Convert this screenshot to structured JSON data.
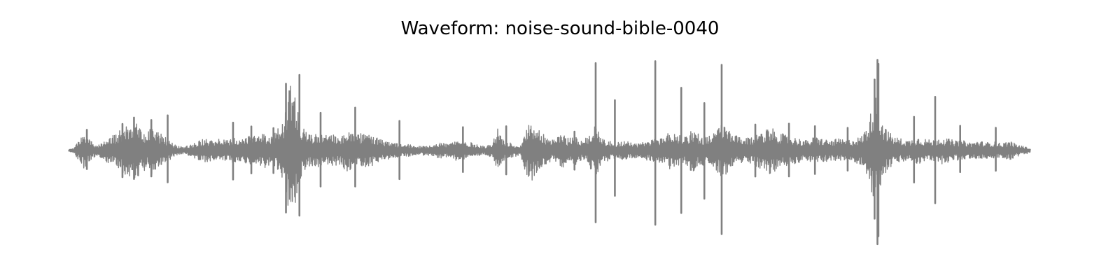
{
  "chart_data": {
    "type": "line",
    "title": "Waveform: noise-sound-bible-0040",
    "xlabel": "",
    "ylabel": "",
    "axes_visible": false,
    "grid": false,
    "ylim": [
      -1,
      1
    ],
    "x_range": [
      0,
      1
    ],
    "color": "#808080",
    "series": [
      {
        "envelope": [
          [
            0.0,
            0.01
          ],
          [
            0.005,
            0.02
          ],
          [
            0.01,
            0.1
          ],
          [
            0.016,
            0.18
          ],
          [
            0.02,
            0.12
          ],
          [
            0.025,
            0.08
          ],
          [
            0.032,
            0.06
          ],
          [
            0.04,
            0.12
          ],
          [
            0.048,
            0.16
          ],
          [
            0.055,
            0.22
          ],
          [
            0.06,
            0.28
          ],
          [
            0.066,
            0.24
          ],
          [
            0.072,
            0.32
          ],
          [
            0.076,
            0.22
          ],
          [
            0.082,
            0.18
          ],
          [
            0.088,
            0.26
          ],
          [
            0.092,
            0.2
          ],
          [
            0.098,
            0.15
          ],
          [
            0.105,
            0.1
          ],
          [
            0.112,
            0.05
          ],
          [
            0.12,
            0.04
          ],
          [
            0.128,
            0.06
          ],
          [
            0.135,
            0.1
          ],
          [
            0.142,
            0.12
          ],
          [
            0.15,
            0.1
          ],
          [
            0.158,
            0.12
          ],
          [
            0.165,
            0.1
          ],
          [
            0.172,
            0.14
          ],
          [
            0.18,
            0.12
          ],
          [
            0.188,
            0.15
          ],
          [
            0.196,
            0.14
          ],
          [
            0.204,
            0.18
          ],
          [
            0.21,
            0.15
          ],
          [
            0.216,
            0.2
          ],
          [
            0.224,
            0.3
          ],
          [
            0.228,
            0.55
          ],
          [
            0.232,
            0.72
          ],
          [
            0.236,
            0.52
          ],
          [
            0.24,
            0.3
          ],
          [
            0.246,
            0.2
          ],
          [
            0.252,
            0.16
          ],
          [
            0.258,
            0.18
          ],
          [
            0.266,
            0.15
          ],
          [
            0.274,
            0.16
          ],
          [
            0.282,
            0.14
          ],
          [
            0.29,
            0.22
          ],
          [
            0.298,
            0.15
          ],
          [
            0.306,
            0.18
          ],
          [
            0.314,
            0.16
          ],
          [
            0.322,
            0.12
          ],
          [
            0.33,
            0.09
          ],
          [
            0.338,
            0.08
          ],
          [
            0.346,
            0.06
          ],
          [
            0.354,
            0.06
          ],
          [
            0.362,
            0.04
          ],
          [
            0.37,
            0.05
          ],
          [
            0.378,
            0.06
          ],
          [
            0.386,
            0.08
          ],
          [
            0.394,
            0.07
          ],
          [
            0.402,
            0.1
          ],
          [
            0.41,
            0.09
          ],
          [
            0.418,
            0.08
          ],
          [
            0.426,
            0.06
          ],
          [
            0.434,
            0.04
          ],
          [
            0.44,
            0.08
          ],
          [
            0.446,
            0.22
          ],
          [
            0.452,
            0.1
          ],
          [
            0.458,
            0.08
          ],
          [
            0.464,
            0.06
          ],
          [
            0.47,
            0.05
          ],
          [
            0.476,
            0.25
          ],
          [
            0.482,
            0.3
          ],
          [
            0.488,
            0.22
          ],
          [
            0.494,
            0.18
          ],
          [
            0.5,
            0.12
          ],
          [
            0.506,
            0.1
          ],
          [
            0.512,
            0.2
          ],
          [
            0.518,
            0.12
          ],
          [
            0.526,
            0.16
          ],
          [
            0.534,
            0.1
          ],
          [
            0.54,
            0.14
          ],
          [
            0.548,
            0.28
          ],
          [
            0.556,
            0.12
          ],
          [
            0.562,
            0.1
          ],
          [
            0.57,
            0.08
          ],
          [
            0.578,
            0.1
          ],
          [
            0.586,
            0.08
          ],
          [
            0.594,
            0.07
          ],
          [
            0.602,
            0.1
          ],
          [
            0.61,
            0.12
          ],
          [
            0.618,
            0.14
          ],
          [
            0.626,
            0.2
          ],
          [
            0.632,
            0.16
          ],
          [
            0.64,
            0.14
          ],
          [
            0.648,
            0.22
          ],
          [
            0.656,
            0.16
          ],
          [
            0.664,
            0.14
          ],
          [
            0.672,
            0.18
          ],
          [
            0.68,
            0.3
          ],
          [
            0.688,
            0.18
          ],
          [
            0.696,
            0.14
          ],
          [
            0.704,
            0.12
          ],
          [
            0.712,
            0.14
          ],
          [
            0.72,
            0.2
          ],
          [
            0.728,
            0.24
          ],
          [
            0.736,
            0.2
          ],
          [
            0.744,
            0.16
          ],
          [
            0.752,
            0.14
          ],
          [
            0.76,
            0.12
          ],
          [
            0.768,
            0.1
          ],
          [
            0.776,
            0.14
          ],
          [
            0.784,
            0.12
          ],
          [
            0.792,
            0.1
          ],
          [
            0.8,
            0.12
          ],
          [
            0.808,
            0.1
          ],
          [
            0.816,
            0.12
          ],
          [
            0.824,
            0.14
          ],
          [
            0.832,
            0.28
          ],
          [
            0.838,
            0.6
          ],
          [
            0.844,
            0.36
          ],
          [
            0.85,
            0.22
          ],
          [
            0.858,
            0.14
          ],
          [
            0.866,
            0.12
          ],
          [
            0.874,
            0.1
          ],
          [
            0.882,
            0.14
          ],
          [
            0.89,
            0.12
          ],
          [
            0.898,
            0.1
          ],
          [
            0.906,
            0.14
          ],
          [
            0.914,
            0.12
          ],
          [
            0.922,
            0.1
          ],
          [
            0.93,
            0.1
          ],
          [
            0.938,
            0.08
          ],
          [
            0.946,
            0.1
          ],
          [
            0.954,
            0.08
          ],
          [
            0.962,
            0.09
          ],
          [
            0.97,
            0.07
          ],
          [
            0.978,
            0.1
          ],
          [
            0.986,
            0.06
          ],
          [
            0.994,
            0.04
          ],
          [
            1.0,
            0.02
          ]
        ],
        "spikes": [
          [
            0.019,
            0.22
          ],
          [
            0.056,
            0.28
          ],
          [
            0.068,
            0.34
          ],
          [
            0.086,
            0.32
          ],
          [
            0.103,
            0.38
          ],
          [
            0.171,
            0.3
          ],
          [
            0.19,
            0.26
          ],
          [
            0.213,
            0.24
          ],
          [
            0.226,
            0.7
          ],
          [
            0.24,
            0.76
          ],
          [
            0.262,
            0.38
          ],
          [
            0.298,
            0.44
          ],
          [
            0.344,
            0.32
          ],
          [
            0.41,
            0.24
          ],
          [
            0.455,
            0.26
          ],
          [
            0.526,
            0.2
          ],
          [
            0.548,
            0.9
          ],
          [
            0.568,
            0.54
          ],
          [
            0.61,
            0.92
          ],
          [
            0.637,
            0.66
          ],
          [
            0.661,
            0.5
          ],
          [
            0.679,
            0.9
          ],
          [
            0.714,
            0.28
          ],
          [
            0.749,
            0.28
          ],
          [
            0.776,
            0.26
          ],
          [
            0.81,
            0.24
          ],
          [
            0.841,
            0.98
          ],
          [
            0.838,
            0.74
          ],
          [
            0.842,
            0.88
          ],
          [
            0.879,
            0.34
          ],
          [
            0.901,
            0.58
          ],
          [
            0.927,
            0.26
          ],
          [
            0.964,
            0.24
          ]
        ]
      }
    ]
  }
}
